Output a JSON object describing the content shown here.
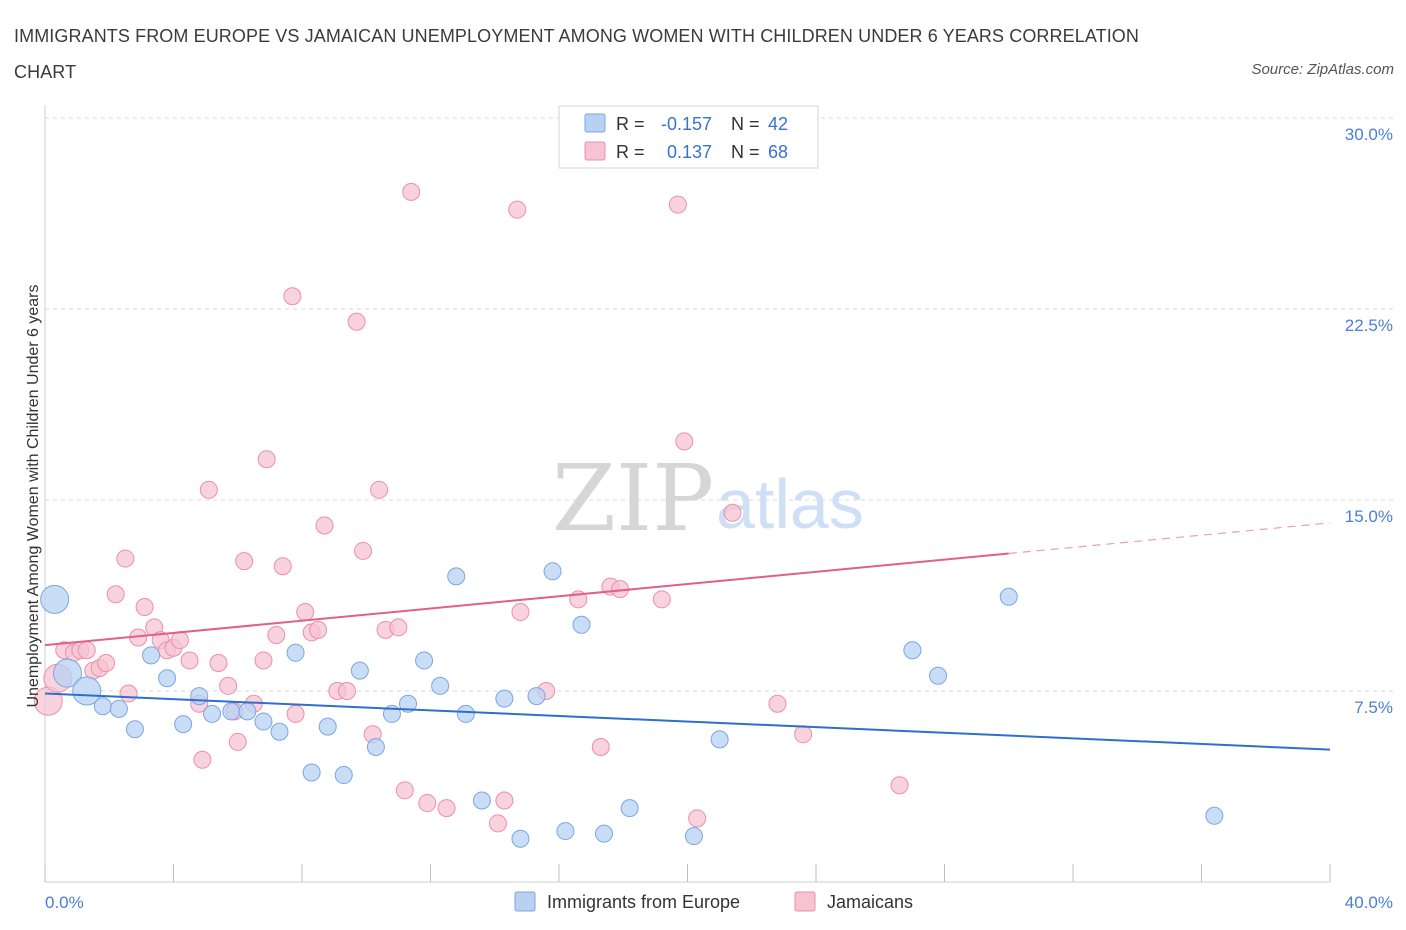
{
  "title": "IMMIGRANTS FROM EUROPE VS JAMAICAN UNEMPLOYMENT AMONG WOMEN WITH CHILDREN UNDER 6 YEARS CORRELATION CHART",
  "source": "Source: ZipAtlas.com",
  "watermark": {
    "zip": "ZIP",
    "atlas": "atlas"
  },
  "legend": {
    "rows": [
      {
        "r_label": "R =",
        "r_value": "-0.157",
        "n_label": "N =",
        "n_value": "42"
      },
      {
        "r_label": "R =",
        "r_value": "0.137",
        "n_label": "N =",
        "n_value": "68"
      }
    ]
  },
  "bottom_legend": [
    "Immigrants from Europe",
    "Jamaicans"
  ],
  "colors": {
    "blue_fill": "#b8d1f3",
    "blue_stroke": "#7aa7e0",
    "blue_line": "#2f6fcc",
    "pink_fill": "#f6c3d2",
    "pink_stroke": "#ec8fab",
    "pink_line": "#e0608c",
    "grid": "#d9d9d9",
    "tick_text": "#4a7fd4"
  },
  "chart_data": {
    "type": "scatter",
    "title": "IMMIGRANTS FROM EUROPE VS JAMAICAN UNEMPLOYMENT AMONG WOMEN WITH CHILDREN UNDER 6 YEARS CORRELATION CHART",
    "xlabel": "",
    "ylabel": "Unemployment Among Women with Children Under 6 years",
    "xlim": [
      0,
      40
    ],
    "ylim": [
      0,
      30
    ],
    "x_tick_labels": [
      "0.0%",
      "40.0%"
    ],
    "y_ticks": [
      7.5,
      15.0,
      22.5,
      30.0
    ],
    "y_tick_labels": [
      "7.5%",
      "15.0%",
      "22.5%",
      "30.0%"
    ],
    "grid": "horizontal dashed",
    "legend_position": "top-center",
    "series": [
      {
        "name": "Immigrants from Europe",
        "r": -0.157,
        "n": 42,
        "trend": {
          "x": [
            0,
            40
          ],
          "y": [
            7.4,
            5.2
          ]
        },
        "points": [
          {
            "x": 0.3,
            "y": 11.1,
            "big": true
          },
          {
            "x": 0.7,
            "y": 8.2,
            "big": true
          },
          {
            "x": 1.3,
            "y": 7.5,
            "big": true
          },
          {
            "x": 1.8,
            "y": 6.9
          },
          {
            "x": 2.3,
            "y": 6.8
          },
          {
            "x": 2.8,
            "y": 6.0
          },
          {
            "x": 3.3,
            "y": 8.9
          },
          {
            "x": 3.8,
            "y": 8.0
          },
          {
            "x": 4.3,
            "y": 6.2
          },
          {
            "x": 4.8,
            "y": 7.3
          },
          {
            "x": 5.2,
            "y": 6.6
          },
          {
            "x": 5.8,
            "y": 6.7
          },
          {
            "x": 6.3,
            "y": 6.7
          },
          {
            "x": 6.8,
            "y": 6.3
          },
          {
            "x": 7.3,
            "y": 5.9
          },
          {
            "x": 7.8,
            "y": 9.0
          },
          {
            "x": 8.3,
            "y": 4.3
          },
          {
            "x": 8.8,
            "y": 6.1
          },
          {
            "x": 9.3,
            "y": 4.2
          },
          {
            "x": 9.8,
            "y": 8.3
          },
          {
            "x": 10.3,
            "y": 5.3
          },
          {
            "x": 10.8,
            "y": 6.6
          },
          {
            "x": 11.3,
            "y": 7.0
          },
          {
            "x": 11.8,
            "y": 8.7
          },
          {
            "x": 12.3,
            "y": 7.7
          },
          {
            "x": 12.8,
            "y": 12.0
          },
          {
            "x": 13.1,
            "y": 6.6
          },
          {
            "x": 13.6,
            "y": 3.2
          },
          {
            "x": 14.3,
            "y": 7.2
          },
          {
            "x": 14.8,
            "y": 1.7
          },
          {
            "x": 15.3,
            "y": 7.3
          },
          {
            "x": 15.8,
            "y": 12.2
          },
          {
            "x": 16.2,
            "y": 2.0
          },
          {
            "x": 16.7,
            "y": 10.1
          },
          {
            "x": 17.4,
            "y": 1.9
          },
          {
            "x": 18.2,
            "y": 2.9
          },
          {
            "x": 20.2,
            "y": 1.8
          },
          {
            "x": 21.0,
            "y": 5.6
          },
          {
            "x": 27.0,
            "y": 9.1
          },
          {
            "x": 27.8,
            "y": 8.1
          },
          {
            "x": 30.0,
            "y": 11.2
          },
          {
            "x": 36.4,
            "y": 2.6
          }
        ]
      },
      {
        "name": "Jamaicans",
        "r": 0.137,
        "n": 68,
        "trend": {
          "x": [
            0,
            30.0
          ],
          "y": [
            9.3,
            12.9
          ]
        },
        "trend_dashed": {
          "x": [
            30.0,
            40
          ],
          "y": [
            12.9,
            14.1
          ]
        },
        "points": [
          {
            "x": 0.1,
            "y": 7.1,
            "big": true
          },
          {
            "x": 0.4,
            "y": 8.0,
            "big": true
          },
          {
            "x": 0.6,
            "y": 9.1
          },
          {
            "x": 0.9,
            "y": 9.0
          },
          {
            "x": 1.1,
            "y": 9.1
          },
          {
            "x": 1.3,
            "y": 9.1
          },
          {
            "x": 1.5,
            "y": 8.3
          },
          {
            "x": 1.7,
            "y": 8.4
          },
          {
            "x": 1.9,
            "y": 8.6
          },
          {
            "x": 2.2,
            "y": 11.3
          },
          {
            "x": 2.5,
            "y": 12.7
          },
          {
            "x": 2.6,
            "y": 7.4
          },
          {
            "x": 2.9,
            "y": 9.6
          },
          {
            "x": 3.1,
            "y": 10.8
          },
          {
            "x": 3.4,
            "y": 10.0
          },
          {
            "x": 3.6,
            "y": 9.5
          },
          {
            "x": 3.8,
            "y": 9.1
          },
          {
            "x": 4.0,
            "y": 9.2
          },
          {
            "x": 4.2,
            "y": 9.5
          },
          {
            "x": 4.5,
            "y": 8.7
          },
          {
            "x": 4.8,
            "y": 7.0
          },
          {
            "x": 4.9,
            "y": 4.8
          },
          {
            "x": 5.1,
            "y": 15.4
          },
          {
            "x": 5.4,
            "y": 8.6
          },
          {
            "x": 5.7,
            "y": 7.7
          },
          {
            "x": 5.9,
            "y": 6.7
          },
          {
            "x": 6.0,
            "y": 5.5
          },
          {
            "x": 6.2,
            "y": 12.6
          },
          {
            "x": 6.5,
            "y": 7.0
          },
          {
            "x": 6.8,
            "y": 8.7
          },
          {
            "x": 6.9,
            "y": 16.6
          },
          {
            "x": 7.2,
            "y": 9.7
          },
          {
            "x": 7.4,
            "y": 12.4
          },
          {
            "x": 7.7,
            "y": 23.0
          },
          {
            "x": 7.8,
            "y": 6.6
          },
          {
            "x": 8.1,
            "y": 10.6
          },
          {
            "x": 8.3,
            "y": 9.8
          },
          {
            "x": 8.5,
            "y": 9.9
          },
          {
            "x": 8.7,
            "y": 14.0
          },
          {
            "x": 9.1,
            "y": 7.5
          },
          {
            "x": 9.4,
            "y": 7.5
          },
          {
            "x": 9.7,
            "y": 22.0
          },
          {
            "x": 9.9,
            "y": 13.0
          },
          {
            "x": 10.2,
            "y": 5.8
          },
          {
            "x": 10.4,
            "y": 15.4
          },
          {
            "x": 10.6,
            "y": 9.9
          },
          {
            "x": 11.0,
            "y": 10.0
          },
          {
            "x": 11.2,
            "y": 3.6
          },
          {
            "x": 11.4,
            "y": 27.1
          },
          {
            "x": 11.9,
            "y": 3.1
          },
          {
            "x": 12.5,
            "y": 2.9
          },
          {
            "x": 14.1,
            "y": 2.3
          },
          {
            "x": 14.3,
            "y": 3.2
          },
          {
            "x": 14.7,
            "y": 26.4
          },
          {
            "x": 14.8,
            "y": 10.6
          },
          {
            "x": 15.6,
            "y": 7.5
          },
          {
            "x": 16.6,
            "y": 11.1
          },
          {
            "x": 17.3,
            "y": 5.3
          },
          {
            "x": 17.6,
            "y": 11.6
          },
          {
            "x": 17.9,
            "y": 11.5
          },
          {
            "x": 19.2,
            "y": 11.1
          },
          {
            "x": 19.7,
            "y": 26.6
          },
          {
            "x": 19.9,
            "y": 17.3
          },
          {
            "x": 20.3,
            "y": 2.5
          },
          {
            "x": 21.4,
            "y": 14.5
          },
          {
            "x": 22.8,
            "y": 7.0
          },
          {
            "x": 23.6,
            "y": 5.8
          },
          {
            "x": 26.6,
            "y": 3.8
          }
        ]
      }
    ]
  }
}
